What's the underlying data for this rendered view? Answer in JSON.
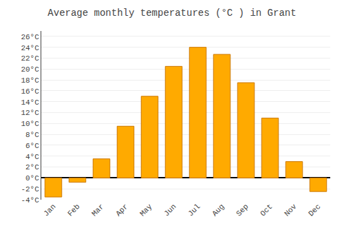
{
  "chart_data": {
    "type": "bar",
    "title": "Average monthly temperatures (°C ) in Grant",
    "categories": [
      "Jan",
      "Feb",
      "Mar",
      "Apr",
      "May",
      "Jun",
      "Jul",
      "Aug",
      "Sep",
      "Oct",
      "Nov",
      "Dec"
    ],
    "values": [
      -3.5,
      -0.8,
      3.5,
      9.5,
      15.0,
      20.5,
      24.0,
      22.7,
      17.5,
      11.0,
      3.0,
      -2.5
    ],
    "color": "#FFAA00",
    "ylim": [
      -4,
      27
    ],
    "yticks": [
      {
        "value": -4,
        "label": "-4°C"
      },
      {
        "value": -2,
        "label": "-2°C"
      },
      {
        "value": 0,
        "label": "0°C"
      },
      {
        "value": 2,
        "label": "2°C"
      },
      {
        "value": 4,
        "label": "4°C"
      },
      {
        "value": 6,
        "label": "6°C"
      },
      {
        "value": 8,
        "label": "8°C"
      },
      {
        "value": 10,
        "label": "10°C"
      },
      {
        "value": 12,
        "label": "12°C"
      },
      {
        "value": 14,
        "label": "14°C"
      },
      {
        "value": 16,
        "label": "16°C"
      },
      {
        "value": 18,
        "label": "18°C"
      },
      {
        "value": 20,
        "label": "20°C"
      },
      {
        "value": 22,
        "label": "22°C"
      },
      {
        "value": 24,
        "label": "24°C"
      },
      {
        "value": 26,
        "label": "26°C"
      }
    ],
    "grid": true
  }
}
